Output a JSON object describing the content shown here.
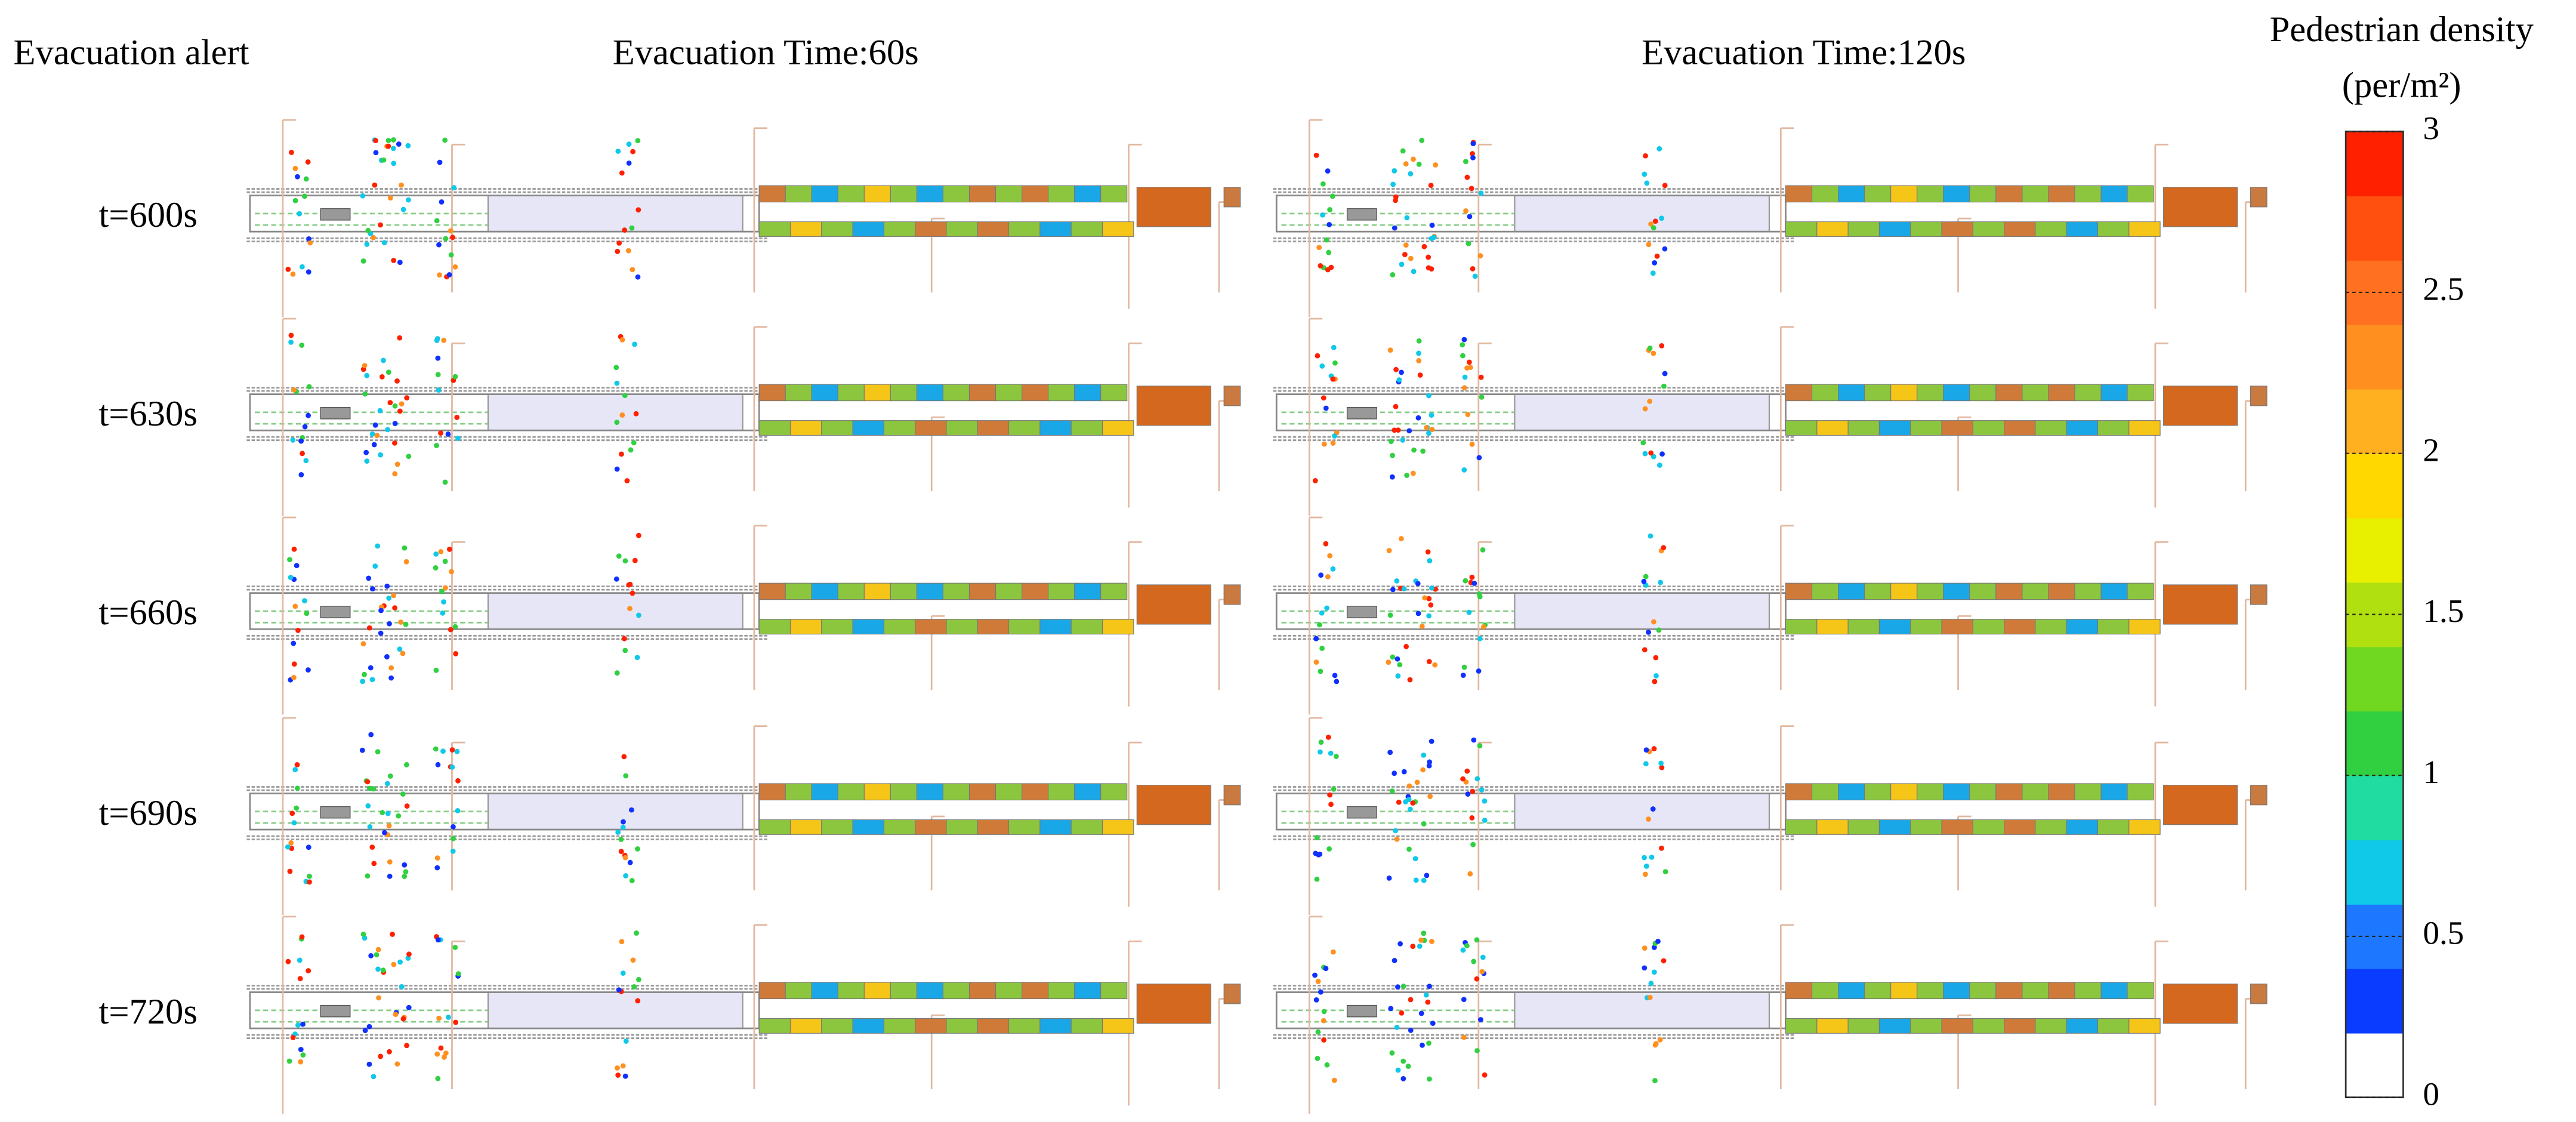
{
  "header": {
    "left": "Evacuation alert",
    "columns": [
      "Evacuation Time:60s",
      "Evacuation Time:120s"
    ]
  },
  "rows": [
    "t=600s",
    "t=630s",
    "t=660s",
    "t=690s",
    "t=720s"
  ],
  "colorbar": {
    "title": "Pedestrian density",
    "unit": "(per/m²)",
    "lim": [
      0,
      3
    ],
    "ticks": [
      0,
      0.5,
      1,
      1.5,
      2,
      2.5,
      3
    ],
    "colors": [
      "#ffffff",
      "#0a3cff",
      "#1e78ff",
      "#10c8e8",
      "#20dca0",
      "#30d040",
      "#70d820",
      "#b0e010",
      "#e8f000",
      "#ffd800",
      "#ffb020",
      "#ff9020",
      "#ff7020",
      "#ff5010",
      "#ff2000"
    ]
  }
}
